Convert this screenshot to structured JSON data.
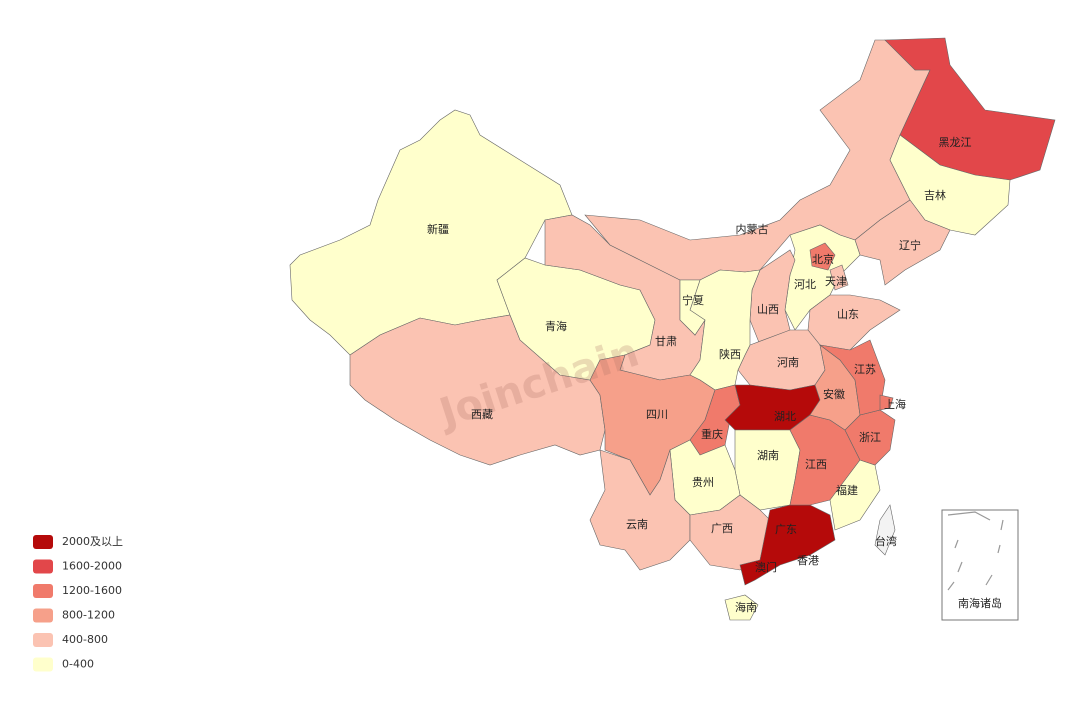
{
  "watermark": "Joinchain",
  "legend": [
    {
      "label": "2000及以上",
      "color": "#b50a0a"
    },
    {
      "label": "1600-2000",
      "color": "#e2474a"
    },
    {
      "label": "1200-1600",
      "color": "#f07a6b"
    },
    {
      "label": "800-1200",
      "color": "#f6a08a"
    },
    {
      "label": "400-800",
      "color": "#fbc3b2"
    },
    {
      "label": "0-400",
      "color": "#ffffcc"
    }
  ],
  "regions": [
    {
      "name": "新疆",
      "color": "#ffffcc"
    },
    {
      "name": "西藏",
      "color": "#fbc3b2"
    },
    {
      "name": "青海",
      "color": "#ffffcc"
    },
    {
      "name": "甘肃",
      "color": "#fbc3b2"
    },
    {
      "name": "内蒙古",
      "color": "#fbc3b2"
    },
    {
      "name": "黑龙江",
      "color": "#e2474a"
    },
    {
      "name": "吉林",
      "color": "#ffffcc"
    },
    {
      "name": "辽宁",
      "color": "#fbc3b2"
    },
    {
      "name": "河北",
      "color": "#ffffcc"
    },
    {
      "name": "北京",
      "color": "#f07a6b"
    },
    {
      "name": "天津",
      "color": "#fbc3b2"
    },
    {
      "name": "山西",
      "color": "#fbc3b2"
    },
    {
      "name": "山东",
      "color": "#fbc3b2"
    },
    {
      "name": "河南",
      "color": "#fbc3b2"
    },
    {
      "name": "陕西",
      "color": "#ffffcc"
    },
    {
      "name": "宁夏",
      "color": "#ffffcc"
    },
    {
      "name": "四川",
      "color": "#f6a08a"
    },
    {
      "name": "重庆",
      "color": "#f07a6b"
    },
    {
      "name": "湖北",
      "color": "#b50a0a"
    },
    {
      "name": "湖南",
      "color": "#ffffcc"
    },
    {
      "name": "贵州",
      "color": "#ffffcc"
    },
    {
      "name": "云南",
      "color": "#fbc3b2"
    },
    {
      "name": "广西",
      "color": "#fbc3b2"
    },
    {
      "name": "广东",
      "color": "#b50a0a"
    },
    {
      "name": "海南",
      "color": "#ffffcc"
    },
    {
      "name": "江西",
      "color": "#f07a6b"
    },
    {
      "name": "福建",
      "color": "#ffffcc"
    },
    {
      "name": "浙江",
      "color": "#f07a6b"
    },
    {
      "name": "安徽",
      "color": "#f6a08a"
    },
    {
      "name": "江苏",
      "color": "#f07a6b"
    },
    {
      "name": "上海",
      "color": "#f07a6b"
    },
    {
      "name": "台湾",
      "color": "#f3f3f3"
    }
  ],
  "labels": [
    "香港",
    "澳门"
  ],
  "inset": {
    "label": "南海诸岛"
  }
}
